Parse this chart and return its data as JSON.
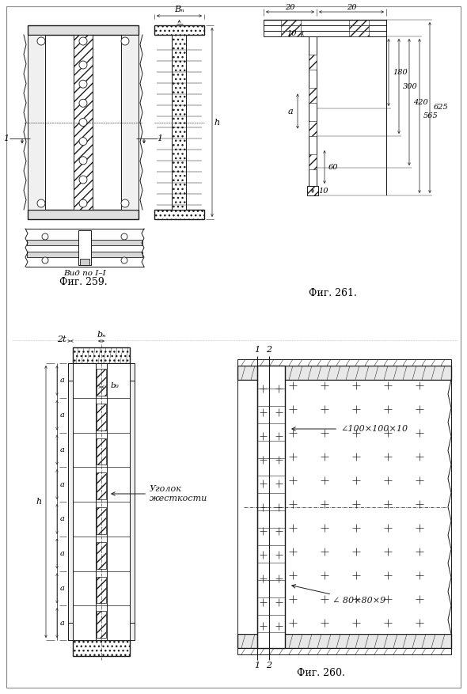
{
  "fig_width": 5.9,
  "fig_height": 8.77,
  "lc": "#1a1a1a",
  "captions": {
    "fig259": "Фиг. 259.",
    "fig260": "Фиг. 260.",
    "fig261": "Фиг. 261.",
    "vid": "Вид по I–I"
  },
  "labels": {
    "bn_top": "Bₙ",
    "h_side": "h",
    "a_dim": "a",
    "h_col": "h",
    "bn_col": "bₙ",
    "bc_col": "b₀",
    "twoT": "2t",
    "d20": "20",
    "d10": "10",
    "d625": "625",
    "d565": "565",
    "d420": "420",
    "d300": "300",
    "d180": "180",
    "d60": "60",
    "d10b": "10",
    "angle100": "∠100×100×10",
    "angle80": "∠ 80×80×9",
    "ugolok": "Уголок\nжесткости"
  }
}
